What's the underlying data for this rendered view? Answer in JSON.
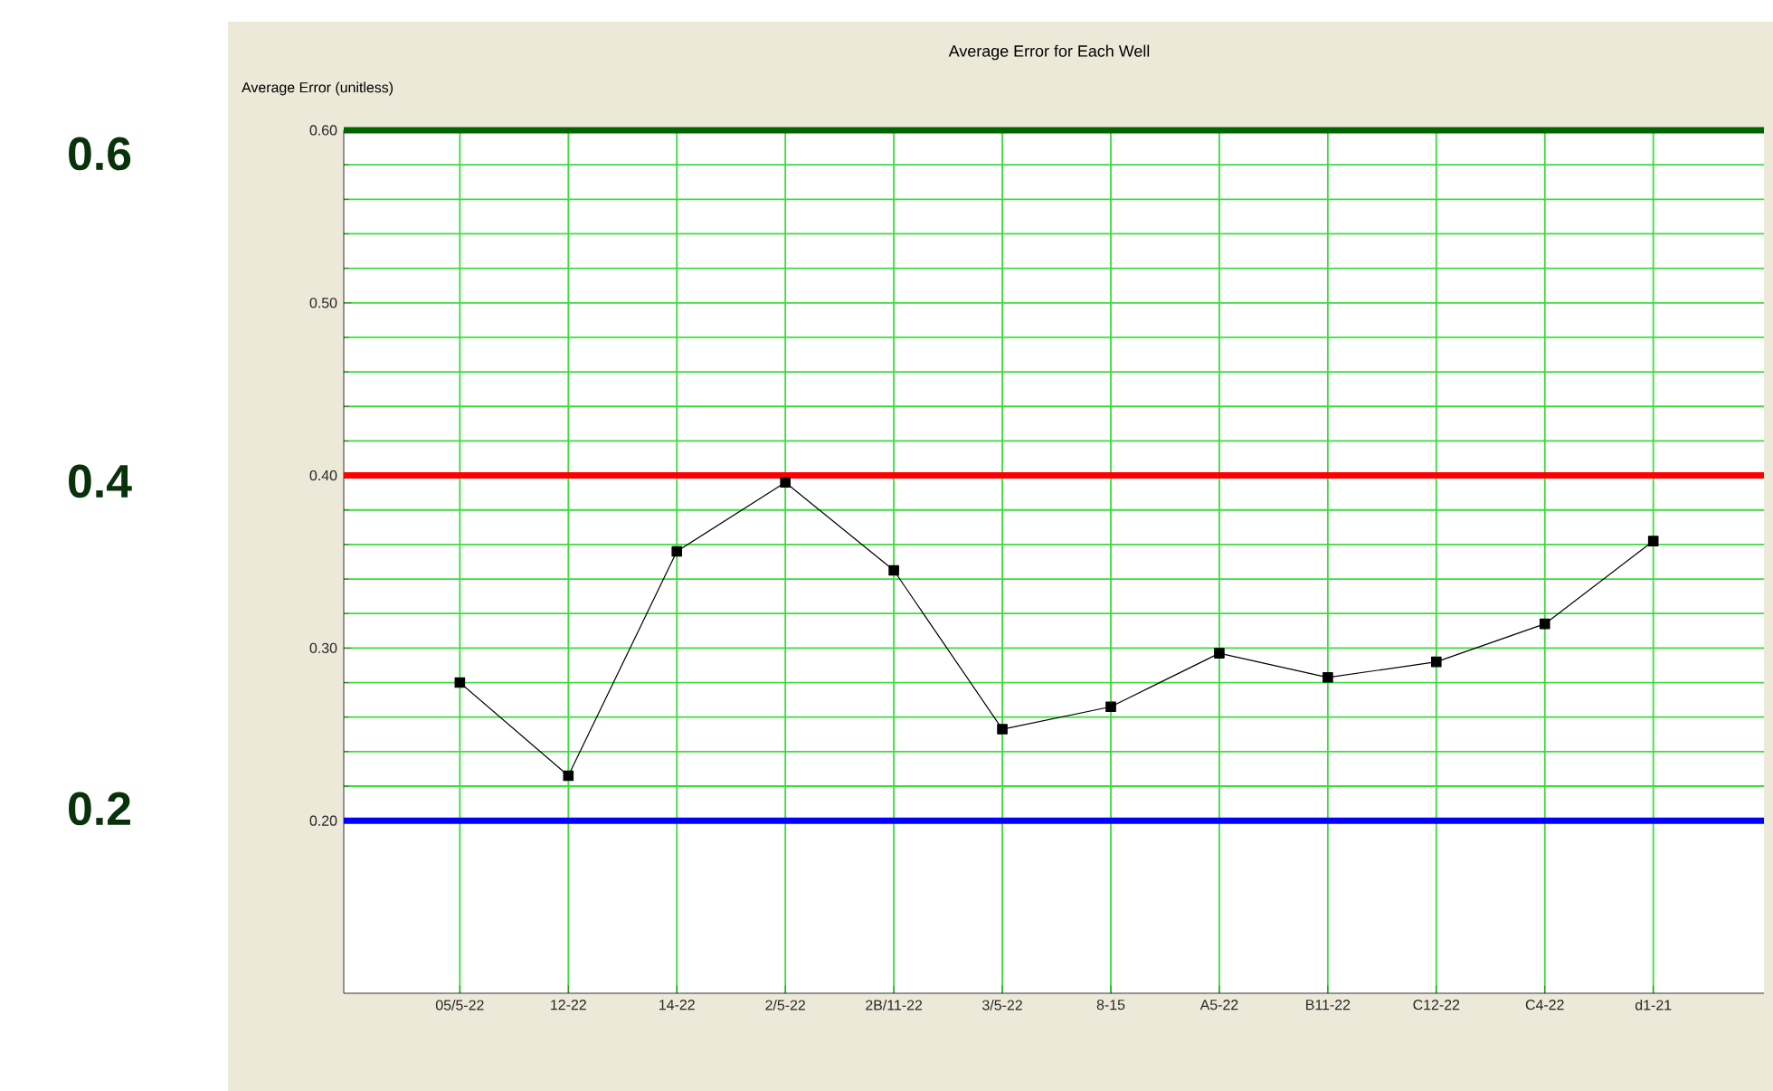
{
  "chart_data": {
    "type": "line",
    "title": "Average Error for Each Well",
    "ylabel": "Average Error (unitless)",
    "categories": [
      "05/5-22",
      "12-22",
      "14-22",
      "2/5-22",
      "2B/11-22",
      "3/5-22",
      "8-15",
      "A5-22",
      "B11-22",
      "C12-22",
      "C4-22",
      "d1-21"
    ],
    "series": [
      {
        "color": "#000000",
        "values": [
          0.28,
          0.226,
          0.356,
          0.396,
          0.345,
          0.253,
          0.266,
          0.297,
          0.283,
          0.292,
          0.314,
          0.362
        ]
      }
    ],
    "ylim": [
      0.1,
      0.6
    ],
    "yticks": [
      {
        "value": 0.2,
        "label": "0.20"
      },
      {
        "value": 0.3,
        "label": "0.30"
      },
      {
        "value": 0.4,
        "label": "0.40"
      },
      {
        "value": 0.5,
        "label": "0.50"
      },
      {
        "value": 0.6,
        "label": "0.60"
      }
    ],
    "ref_lines": [
      {
        "axis": "y",
        "value": 0.6,
        "color": "#006400"
      },
      {
        "axis": "y",
        "value": 0.4,
        "color": "#ff0000"
      },
      {
        "axis": "y",
        "value": 0.2,
        "color": "#0000ff"
      }
    ],
    "annotations": [
      "0.6",
      "0.4",
      "0.2"
    ],
    "grid": true,
    "marker": "square",
    "line_style": "solid"
  }
}
